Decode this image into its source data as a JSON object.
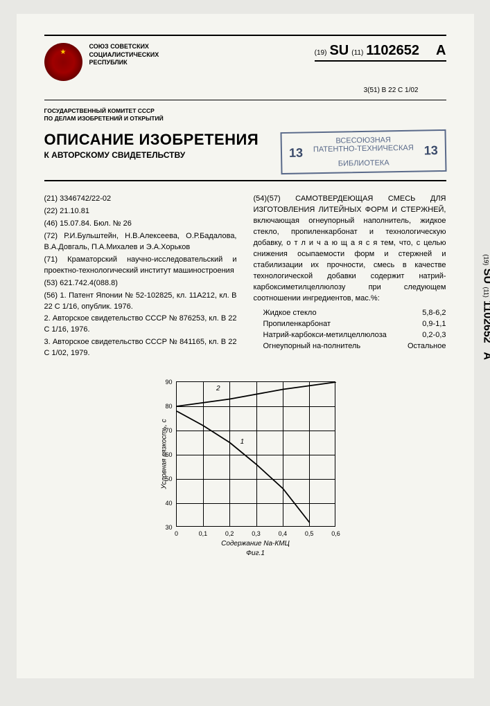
{
  "header": {
    "union": "СОЮЗ СОВЕТСКИХ\nСОЦИАЛИСТИЧЕСКИХ\nРЕСПУБЛИК",
    "pub_prefix": "(19)",
    "pub_code": "SU",
    "pub_mid": "(11)",
    "pub_number": "1102652",
    "pub_suffix": "A",
    "class_code": "3(51) В 22 С 1/02",
    "committee": "ГОСУДАРСТВЕННЫЙ КОМИТЕТ СССР\nПО ДЕЛАМ ИЗОБРЕТЕНИЙ И ОТКРЫТИЙ",
    "title_main": "ОПИСАНИЕ ИЗОБРЕТЕНИЯ",
    "title_sub": "К АВТОРСКОМУ СВИДЕТЕЛЬСТВУ",
    "stamp_top": "ВСЕСОЮЗНАЯ",
    "stamp_mid": "ПАТЕНТНО-ТЕХНИЧЕСКАЯ",
    "stamp_bot": "БИБЛИОТЕКА",
    "stamp_num": "13"
  },
  "left": {
    "l1": "(21) 3346742/22-02",
    "l2": "(22) 21.10.81",
    "l3": "(46) 15.07.84. Бюл. № 26",
    "l4": "(72) Р.И.Бульштейн, Н.В.Алексеева, О.Р.Бадалова, В.А.Довгаль, П.А.Михалев и Э.А.Хорьков",
    "l5": "(71) Краматорский научно-исследовательский и проектно-технологический институт машиностроения",
    "l6": "(53) 621.742.4(088.8)",
    "l7": "(56) 1. Патент Японии № 52-102825, кл. 11А212, кл. В 22 С 1/16, опублик. 1976.",
    "l8": "2. Авторское свидетельство СССР № 876253, кл. В 22 С 1/16, 1976.",
    "l9": "3. Авторское свидетельство СССР № 841165, кл. В 22 С 1/02, 1979."
  },
  "right": {
    "abstract": "(54)(57) САМОТВЕРДЕЮЩАЯ СМЕСЬ ДЛЯ ИЗГОТОВЛЕНИЯ ЛИТЕЙНЫХ ФОРМ И СТЕРЖНЕЙ, включающая огнеупорный наполнитель, жидкое стекло, пропиленкарбонат и технологическую добавку, о т л и ч а ю щ а я с я  тем, что, с целью снижения осыпаемости форм и стержней и стабилизации их прочности, смесь в качестве технологической добавки содержит натрий-карбоксиметилцеллюлозу при следующем соотношении ингредиентов, мас.%:",
    "ing": [
      {
        "name": "Жидкое стекло",
        "val": "5,8-6,2"
      },
      {
        "name": "Пропиленкарбонат",
        "val": "0,9-1,1"
      },
      {
        "name": "Натрий-карбокси-метилцеллюлоза",
        "val": "0,2-0,3"
      },
      {
        "name": "Огнеупорный на-полнитель",
        "val": "Остальное"
      }
    ]
  },
  "chart": {
    "ylabel": "Условная вязкость, с",
    "xlabel": "Содержание Na-КМЦ",
    "figlabel": "Фиг.1",
    "ylim": [
      30,
      90
    ],
    "xlim": [
      0,
      0.6
    ],
    "yticks": [
      30,
      40,
      50,
      60,
      70,
      80,
      90
    ],
    "xticks": [
      0,
      0.1,
      0.2,
      0.3,
      0.4,
      0.5,
      0.6
    ],
    "ytick_labels": [
      "30",
      "40",
      "50",
      "60",
      "70",
      "80",
      "90"
    ],
    "xtick_labels": [
      "0",
      "0,1",
      "0,2",
      "0,3",
      "0,4",
      "0,5",
      "0,6"
    ],
    "curve1": [
      [
        0,
        78
      ],
      [
        0.1,
        72
      ],
      [
        0.2,
        65
      ],
      [
        0.3,
        56
      ],
      [
        0.4,
        46
      ],
      [
        0.5,
        32
      ]
    ],
    "curve2": [
      [
        0,
        80
      ],
      [
        0.2,
        83
      ],
      [
        0.4,
        87
      ],
      [
        0.6,
        90
      ]
    ],
    "curve1_label": "1",
    "curve2_label": "2",
    "line_color": "#000000",
    "grid_color": "#000000",
    "background": "#f5f5f0"
  },
  "sidetab": {
    "prefix": "(19)",
    "code": "SU",
    "mid": "(11)",
    "num": "1102652",
    "suffix": "A"
  }
}
